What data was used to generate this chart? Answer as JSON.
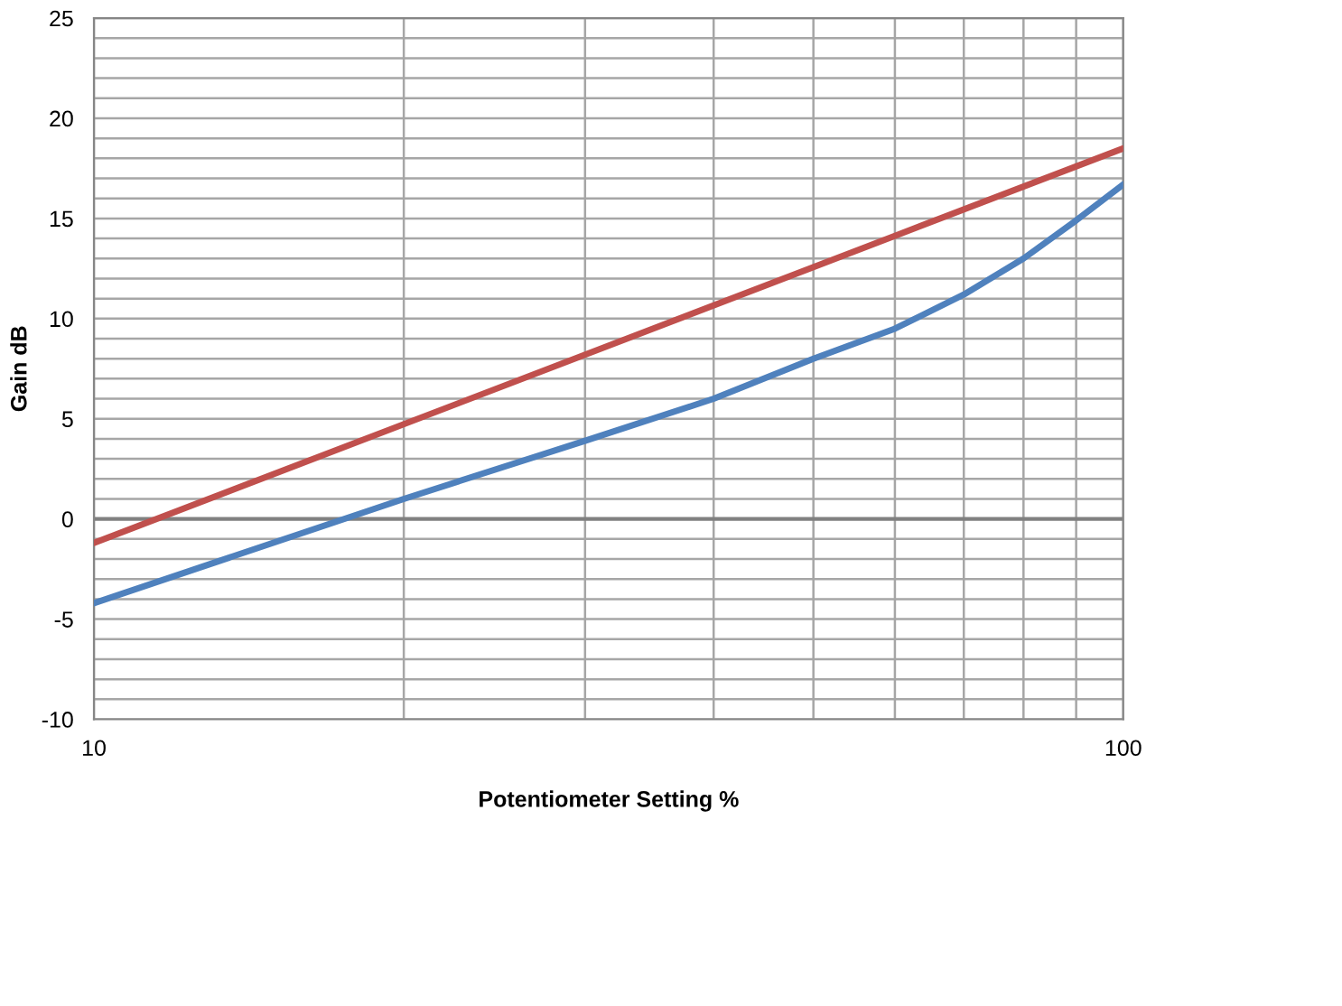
{
  "chart_data": {
    "type": "line",
    "xlabel": "Potentiometer Setting %",
    "ylabel": "Gain dB",
    "log": "x",
    "series": [
      {
        "color": "#c0504d",
        "x": [
          10,
          100
        ],
        "values": [
          -1.2,
          18.5
        ]
      },
      {
        "color": "#4f81bd",
        "x": [
          10,
          20,
          30,
          40,
          50,
          60,
          70,
          80,
          90,
          100
        ],
        "values": [
          -4.2,
          1.0,
          3.9,
          6.0,
          8.0,
          9.5,
          11.2,
          13.0,
          14.9,
          16.7
        ]
      }
    ],
    "xlim": [
      10,
      100
    ],
    "ylim": [
      -10,
      25
    ],
    "xticks": [
      10,
      {
        "value": 20,
        "label": null
      },
      {
        "value": 30,
        "label": null
      },
      {
        "value": 40,
        "label": null
      },
      {
        "value": 50,
        "label": null
      },
      {
        "value": 60,
        "label": null
      },
      {
        "value": 70,
        "label": null
      },
      {
        "value": 80,
        "label": null
      },
      {
        "value": 90,
        "label": null
      },
      100
    ],
    "yticks": [
      -10,
      {
        "value": -9,
        "label": null
      },
      {
        "value": -8,
        "label": null
      },
      {
        "value": -7,
        "label": null
      },
      {
        "value": -6,
        "label": null
      },
      -5,
      {
        "value": -4,
        "label": null
      },
      {
        "value": -3,
        "label": null
      },
      {
        "value": -2,
        "label": null
      },
      {
        "value": -1,
        "label": null
      },
      0,
      {
        "value": 1,
        "label": null
      },
      {
        "value": 2,
        "label": null
      },
      {
        "value": 3,
        "label": null
      },
      {
        "value": 4,
        "label": null
      },
      5,
      {
        "value": 6,
        "label": null
      },
      {
        "value": 7,
        "label": null
      },
      {
        "value": 8,
        "label": null
      },
      {
        "value": 9,
        "label": null
      },
      10,
      {
        "value": 11,
        "label": null
      },
      {
        "value": 12,
        "label": null
      },
      {
        "value": 13,
        "label": null
      },
      {
        "value": 14,
        "label": null
      },
      15,
      {
        "value": 16,
        "label": null
      },
      {
        "value": 17,
        "label": null
      },
      {
        "value": 18,
        "label": null
      },
      {
        "value": 19,
        "label": null
      },
      20,
      {
        "value": 21,
        "label": null
      },
      {
        "value": 22,
        "label": null
      },
      {
        "value": 23,
        "label": null
      },
      {
        "value": 24,
        "label": null
      },
      25
    ],
    "grid": true,
    "legend": false,
    "marker": "none",
    "line_style": "solid"
  }
}
